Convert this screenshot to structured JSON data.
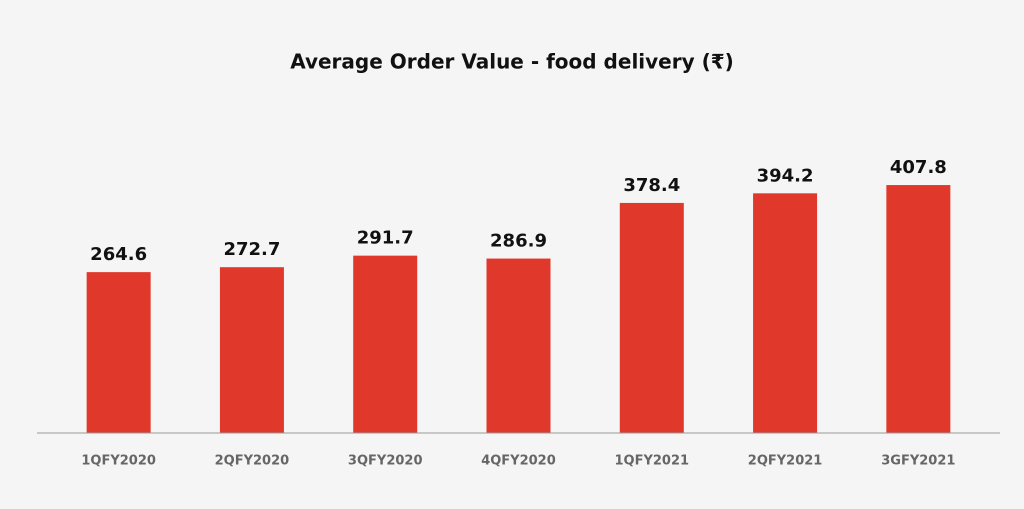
{
  "chart_data": {
    "type": "bar",
    "title": "Average Order Value - food delivery (₹)",
    "categories": [
      "1QFY2020",
      "2QFY2020",
      "3QFY2020",
      "4QFY2020",
      "1QFY2021",
      "2QFY2021",
      "3GFY2021"
    ],
    "values": [
      264.6,
      272.7,
      291.7,
      286.9,
      378.4,
      394.2,
      407.8
    ],
    "color": "#e0382b"
  }
}
